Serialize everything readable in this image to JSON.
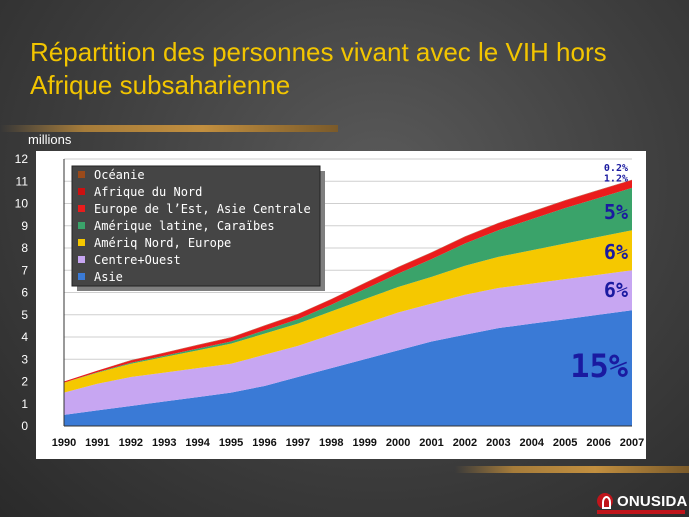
{
  "title": "Répartition des personnes vivant avec le VIH hors Afrique subsaharienne",
  "logo_text": "ONUSIDA",
  "chart_data": {
    "type": "area",
    "stacked": true,
    "ylabel": "millions",
    "ylim": [
      0,
      12
    ],
    "yticks": [
      0,
      1,
      2,
      3,
      4,
      5,
      6,
      7,
      8,
      9,
      10,
      11,
      12
    ],
    "x": [
      1990,
      1991,
      1992,
      1993,
      1994,
      1995,
      1996,
      1997,
      1998,
      1999,
      2000,
      2001,
      2002,
      2003,
      2004,
      2005,
      2006,
      2007
    ],
    "legend_placement": "top-left",
    "grid": true,
    "series": [
      {
        "name": "Asie",
        "color": "#3a7ad6",
        "values": [
          0.5,
          0.7,
          0.9,
          1.1,
          1.3,
          1.5,
          1.8,
          2.2,
          2.6,
          3.0,
          3.4,
          3.8,
          4.1,
          4.4,
          4.6,
          4.8,
          5.0,
          5.2
        ]
      },
      {
        "name": "Centre+Ouest",
        "color": "#c7a6f2",
        "values": [
          1.0,
          1.2,
          1.3,
          1.3,
          1.3,
          1.3,
          1.4,
          1.4,
          1.5,
          1.6,
          1.7,
          1.7,
          1.8,
          1.8,
          1.8,
          1.8,
          1.8,
          1.8
        ]
      },
      {
        "name": "Amériq Nord, Europe",
        "color": "#f5c800",
        "values": [
          0.45,
          0.5,
          0.6,
          0.7,
          0.8,
          0.9,
          0.95,
          1.0,
          1.05,
          1.1,
          1.15,
          1.2,
          1.3,
          1.4,
          1.5,
          1.6,
          1.7,
          1.8
        ]
      },
      {
        "name": "Amérique latine, Caraïbes",
        "color": "#3aa36a",
        "values": [
          0.0,
          0.02,
          0.04,
          0.06,
          0.08,
          0.1,
          0.15,
          0.2,
          0.3,
          0.45,
          0.6,
          0.8,
          1.0,
          1.2,
          1.4,
          1.6,
          1.75,
          1.9
        ]
      },
      {
        "name": "Europe de l’Est, Asie Centrale",
        "color": "#ea1c1c",
        "values": [
          0.05,
          0.07,
          0.1,
          0.12,
          0.15,
          0.17,
          0.2,
          0.22,
          0.24,
          0.26,
          0.28,
          0.29,
          0.3,
          0.31,
          0.32,
          0.33,
          0.34,
          0.35
        ]
      },
      {
        "name": "Afrique du Nord",
        "color": "#cc1010",
        "values": [
          0.0,
          0.0,
          0.01,
          0.01,
          0.01,
          0.01,
          0.01,
          0.01,
          0.01,
          0.01,
          0.01,
          0.01,
          0.01,
          0.01,
          0.01,
          0.01,
          0.01,
          0.01
        ]
      },
      {
        "name": "Océanie",
        "color": "#9a4a1a",
        "values": [
          0.0,
          0.0,
          0.01,
          0.01,
          0.01,
          0.01,
          0.01,
          0.01,
          0.01,
          0.01,
          0.01,
          0.01,
          0.01,
          0.01,
          0.01,
          0.01,
          0.01,
          0.01
        ]
      }
    ],
    "legend_order": [
      "Océanie",
      "Afrique du Nord",
      "Europe de l’Est, Asie Centrale",
      "Amérique latine, Caraïbes",
      "Amériq Nord, Europe",
      "Centre+Ouest",
      "Asie"
    ],
    "annotations": [
      {
        "text": "0.2%",
        "color": "#1a1aa0",
        "x": 2007,
        "y": 11.45,
        "size": "small"
      },
      {
        "text": "1.2%",
        "color": "#1a1aa0",
        "x": 2007,
        "y": 11.0,
        "size": "small"
      },
      {
        "text": "5%",
        "color": "#1a1aa0",
        "x": 2007,
        "y": 9.3,
        "size": "medium"
      },
      {
        "text": "6%",
        "color": "#1a1aa0",
        "x": 2007,
        "y": 7.5,
        "size": "medium"
      },
      {
        "text": "6%",
        "color": "#1a1aa0",
        "x": 2007,
        "y": 5.8,
        "size": "medium"
      },
      {
        "text": "15%",
        "color": "#1a1aa0",
        "x": 2007,
        "y": 2.2,
        "size": "large"
      }
    ]
  }
}
